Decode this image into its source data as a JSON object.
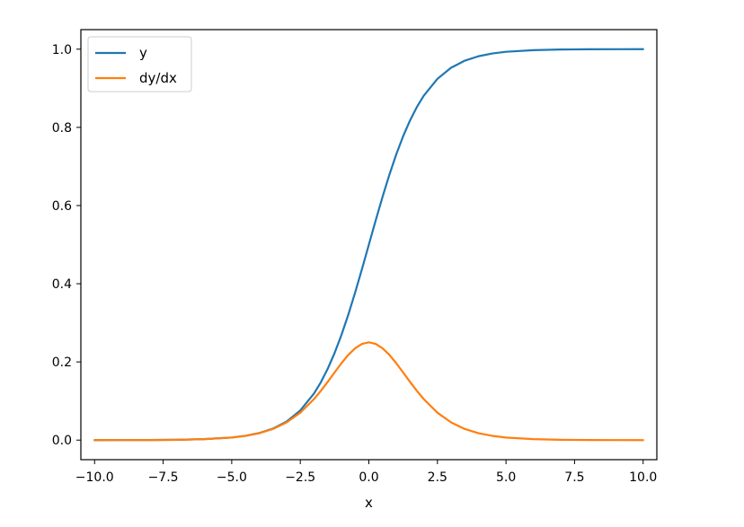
{
  "chart_data": {
    "type": "line",
    "title": "",
    "xlabel": "x",
    "ylabel": "",
    "xlim": [
      -10.5,
      10.5
    ],
    "ylim": [
      -0.05,
      1.05
    ],
    "x_ticks": [
      -10.0,
      -7.5,
      -5.0,
      -2.5,
      0.0,
      2.5,
      5.0,
      7.5,
      10.0
    ],
    "x_tick_labels": [
      "−10.0",
      "−7.5",
      "−5.0",
      "−2.5",
      "0.0",
      "2.5",
      "5.0",
      "7.5",
      "10.0"
    ],
    "y_ticks": [
      0.0,
      0.2,
      0.4,
      0.6,
      0.8,
      1.0
    ],
    "y_tick_labels": [
      "0.0",
      "0.2",
      "0.4",
      "0.6",
      "0.8",
      "1.0"
    ],
    "grid": false,
    "legend_position": "top-left",
    "x": [
      -10.0,
      -9.0,
      -8.0,
      -7.0,
      -6.0,
      -5.0,
      -4.5,
      -4.0,
      -3.5,
      -3.0,
      -2.5,
      -2.0,
      -1.75,
      -1.5,
      -1.25,
      -1.0,
      -0.75,
      -0.5,
      -0.25,
      0.0,
      0.25,
      0.5,
      0.75,
      1.0,
      1.25,
      1.5,
      1.75,
      2.0,
      2.5,
      3.0,
      3.5,
      4.0,
      4.5,
      5.0,
      6.0,
      7.0,
      8.0,
      9.0,
      10.0
    ],
    "series": [
      {
        "name": "y",
        "color": "#1f77b4",
        "values": [
          0.0,
          0.0001,
          0.0003,
          0.0009,
          0.0025,
          0.0067,
          0.011,
          0.018,
          0.0293,
          0.0474,
          0.0759,
          0.1192,
          0.148,
          0.1824,
          0.2227,
          0.2689,
          0.3208,
          0.3775,
          0.4378,
          0.5,
          0.5622,
          0.6225,
          0.6792,
          0.7311,
          0.7773,
          0.8176,
          0.852,
          0.8808,
          0.9241,
          0.9526,
          0.9707,
          0.982,
          0.989,
          0.9933,
          0.9975,
          0.9991,
          0.9997,
          0.9999,
          1.0
        ]
      },
      {
        "name": "dy/dx",
        "color": "#ff7f0e",
        "values": [
          0.0,
          0.0001,
          0.0003,
          0.0009,
          0.0025,
          0.0066,
          0.0109,
          0.0177,
          0.0285,
          0.0452,
          0.0701,
          0.105,
          0.1261,
          0.1491,
          0.1731,
          0.1966,
          0.2179,
          0.235,
          0.2461,
          0.25,
          0.2461,
          0.235,
          0.2179,
          0.1966,
          0.1731,
          0.1491,
          0.1261,
          0.105,
          0.0701,
          0.0452,
          0.0285,
          0.0177,
          0.0109,
          0.0066,
          0.0025,
          0.0009,
          0.0003,
          0.0001,
          0.0
        ]
      }
    ]
  }
}
